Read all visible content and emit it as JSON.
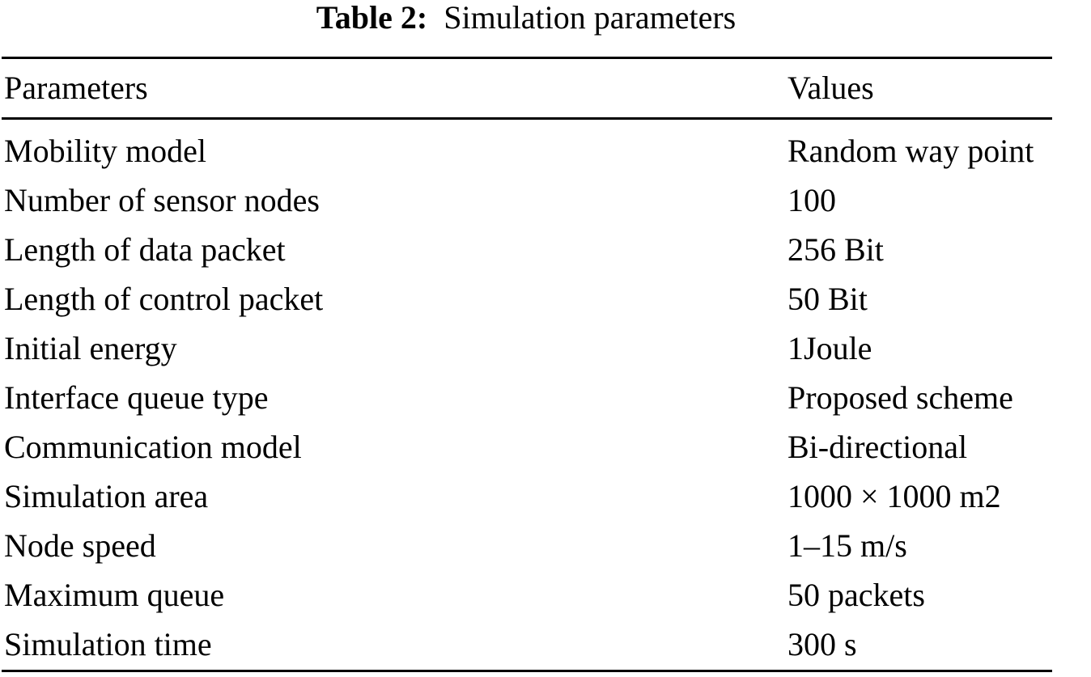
{
  "caption": {
    "label": "Table 2:",
    "title": "Simulation parameters"
  },
  "table": {
    "headers": {
      "param": "Parameters",
      "value": "Values"
    },
    "rows": [
      {
        "param": "Mobility model",
        "value": "Random way point"
      },
      {
        "param": "Number of sensor nodes",
        "value": "100"
      },
      {
        "param": "Length of data packet",
        "value": "256 Bit"
      },
      {
        "param": "Length of control packet",
        "value": "50 Bit"
      },
      {
        "param": "Initial energy",
        "value": "1Joule"
      },
      {
        "param": "Interface queue type",
        "value": "Proposed scheme"
      },
      {
        "param": "Communication model",
        "value": "Bi-directional"
      },
      {
        "param": "Simulation area",
        "value": "1000 × 1000 m2"
      },
      {
        "param": "Node speed",
        "value": "1–15 m/s"
      },
      {
        "param": "Maximum queue",
        "value": "50 packets"
      },
      {
        "param": "Simulation time",
        "value": "300 s"
      }
    ]
  }
}
